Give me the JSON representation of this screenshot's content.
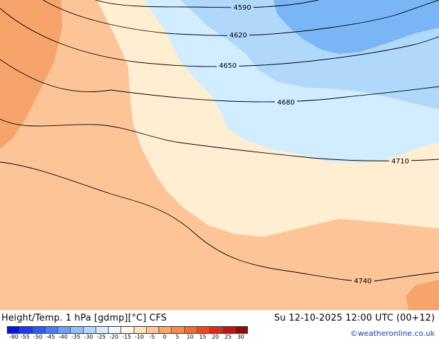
{
  "map": {
    "contours": [
      {
        "value": "4590",
        "label": "4590"
      },
      {
        "value": "4620",
        "label": "4620"
      },
      {
        "value": "4650",
        "label": "4650"
      },
      {
        "value": "4680",
        "label": "4680"
      },
      {
        "value": "4710",
        "label": "4710"
      },
      {
        "value": "4740",
        "label": "4740"
      }
    ],
    "fill_colors": {
      "dark_orange": "#f6a46b",
      "orange": "#fcc497",
      "cream": "#ffeed2",
      "pale_blue": "#d2edff",
      "light_blue": "#b0d8fb",
      "medium_blue": "#7ab5f5"
    }
  },
  "footer": {
    "title_left": "Height/Temp. 1 hPa [gdmp][°C] CFS",
    "title_right": "Su 12-10-2025 12:00 UTC (00+12)",
    "credit": "©weatheronline.co.uk",
    "scale": {
      "labels": [
        "-80",
        "-55",
        "-50",
        "-45",
        "-40",
        "-35",
        "-30",
        "-25",
        "-20",
        "-15",
        "-10",
        "-5",
        "0",
        "5",
        "10",
        "15",
        "20",
        "25",
        "30"
      ],
      "colors": [
        "#0b13d6",
        "#1c3ae8",
        "#2f5cf2",
        "#4a80f5",
        "#6aa3f7",
        "#8ec1fa",
        "#b3d8fb",
        "#d3ecff",
        "#eef7ff",
        "#fff6e8",
        "#ffe2bd",
        "#fcc497",
        "#f8a76d",
        "#f48d4c",
        "#f06d2e",
        "#ea4a1d",
        "#de2a15",
        "#c11511",
        "#8d0c0c"
      ]
    }
  }
}
